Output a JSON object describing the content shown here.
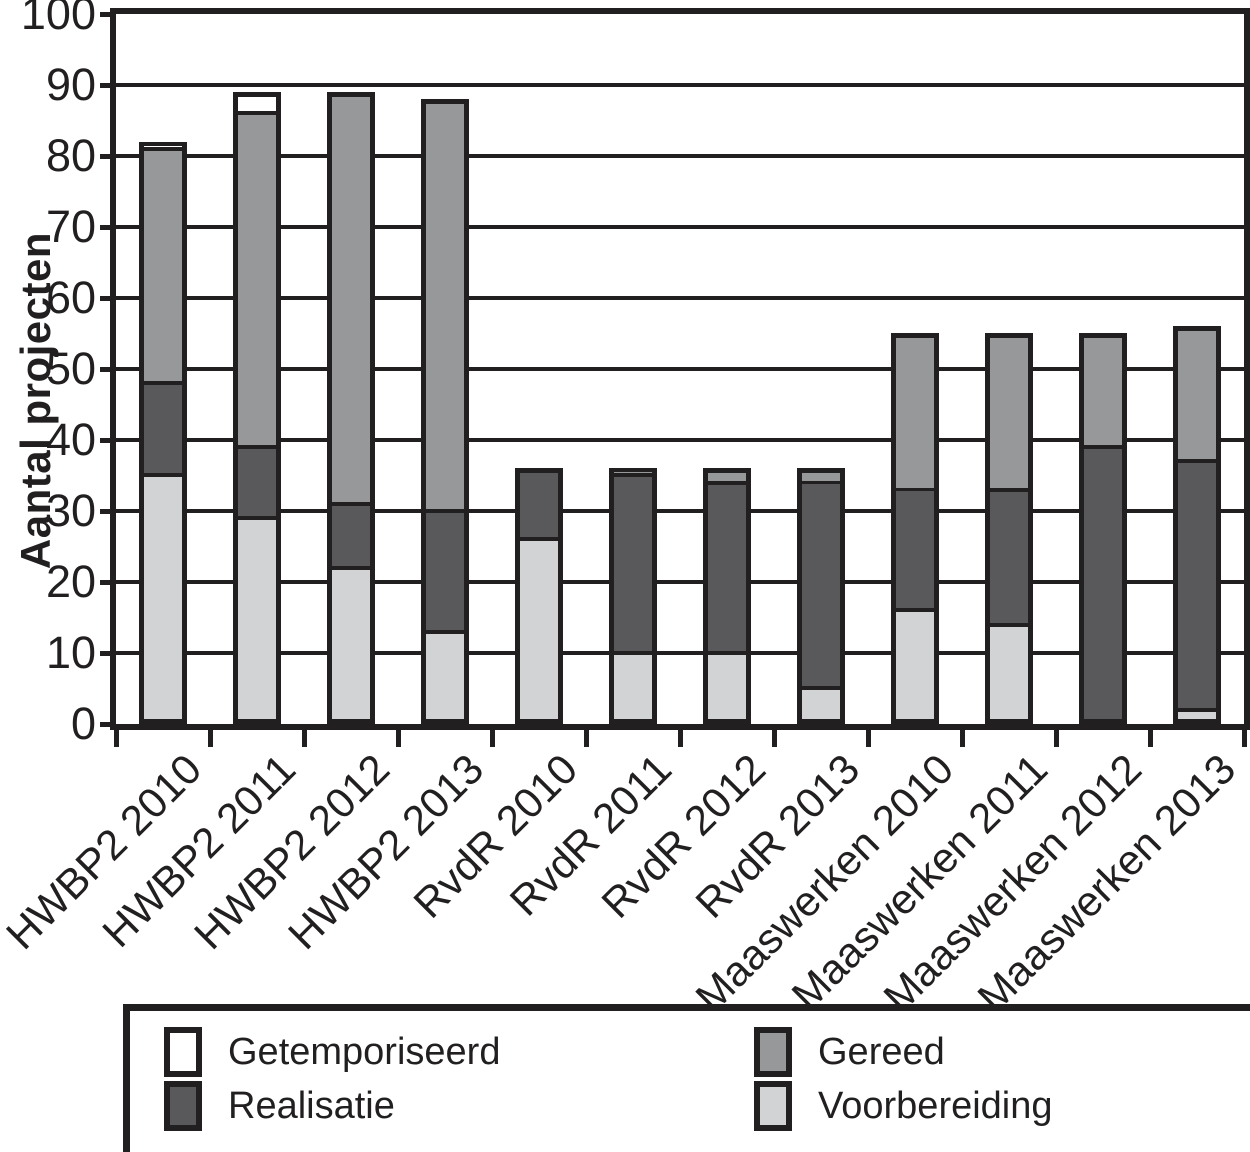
{
  "figure": {
    "background": "#ffffff",
    "ink_color": "#221f20"
  },
  "y_axis": {
    "label": "Aantal projecten",
    "ticks": [
      0,
      10,
      20,
      30,
      40,
      50,
      60,
      70,
      80,
      90,
      100
    ],
    "min": 0,
    "max": 100
  },
  "chart_data": {
    "type": "bar",
    "stacked": true,
    "title": "",
    "xlabel": "",
    "ylabel": "Aantal projecten",
    "ylim": [
      0,
      100
    ],
    "grid": true,
    "gridline_values": [
      10,
      20,
      30,
      40,
      50,
      60,
      70,
      80,
      90
    ],
    "legend_position": "bottom-box",
    "categories": [
      "HWBP2 2010",
      "HWBP2 2011",
      "HWBP2 2012",
      "HWBP2 2013",
      "RvdR 2010",
      "RvdR 2011",
      "RvdR 2012",
      "RvdR 2013",
      "Maaswerken 2010",
      "Maaswerken 2011",
      "Maaswerken 2012",
      "Maaswerken 2013"
    ],
    "series": [
      {
        "name": "Voorbereiding",
        "color": "#d2d3d5",
        "values": [
          35,
          29,
          22,
          13,
          26,
          10,
          10,
          5,
          16,
          14,
          0,
          2
        ]
      },
      {
        "name": "Realisatie",
        "color": "#59585a",
        "values": [
          13,
          10,
          9,
          17,
          10,
          25,
          24,
          29,
          17,
          19,
          39,
          35
        ]
      },
      {
        "name": "Gereed",
        "color": "#97989a",
        "values": [
          33,
          47,
          58,
          58,
          0,
          1,
          2,
          2,
          22,
          22,
          16,
          19
        ]
      },
      {
        "name": "Getemporiseerd",
        "color": "#ffffff",
        "values": [
          1,
          3,
          0,
          0,
          0,
          0,
          0,
          0,
          0,
          0,
          0,
          0
        ]
      }
    ],
    "stack_totals": [
      82,
      89,
      89,
      88,
      36,
      36,
      36,
      36,
      55,
      55,
      55,
      56
    ]
  },
  "legend": {
    "items": [
      {
        "label": "Getemporiseerd",
        "color": "#ffffff"
      },
      {
        "label": "Gereed",
        "color": "#97989a"
      },
      {
        "label": "Realisatie",
        "color": "#59585a"
      },
      {
        "label": "Voorbereiding",
        "color": "#d2d3d5"
      }
    ]
  }
}
